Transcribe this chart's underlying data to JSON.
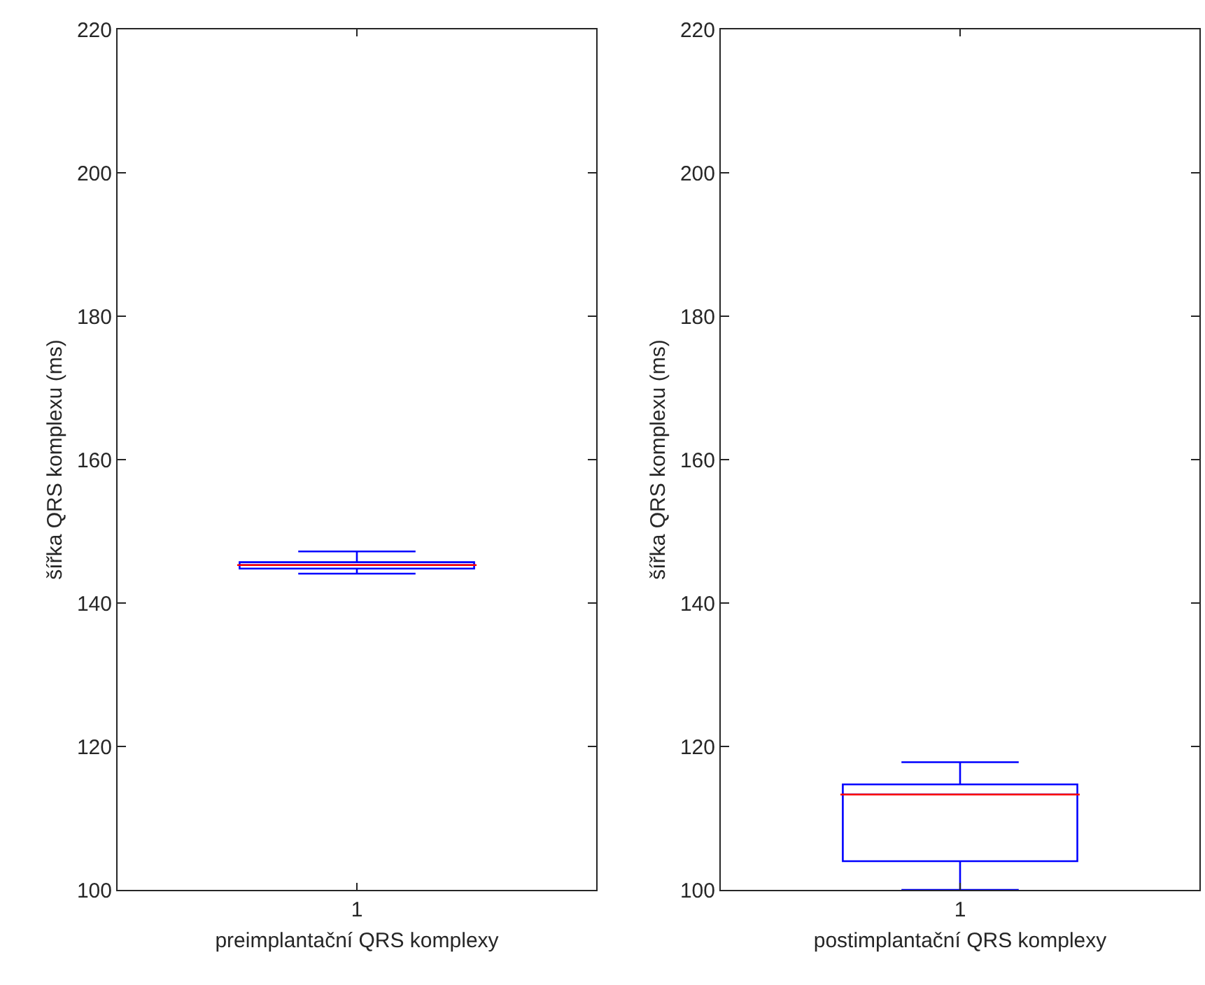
{
  "chart_data": [
    {
      "type": "box",
      "categories": [
        "1"
      ],
      "xlabel": "preimplantační QRS komplexy",
      "ylabel": "šířka QRS komplexu (ms)",
      "ylim": [
        100,
        220
      ],
      "yticks": [
        100,
        120,
        140,
        160,
        180,
        200,
        220
      ],
      "grid": false,
      "series": [
        {
          "color": "#0000ff",
          "boxes": [
            {
              "low": 144.1,
              "q1": 144.8,
              "median": 145.3,
              "q3": 145.7,
              "high": 147.2
            }
          ]
        }
      ]
    },
    {
      "type": "box",
      "categories": [
        "1"
      ],
      "xlabel": "postimplantační QRS komplexy",
      "ylabel": "šířka QRS komplexu (ms)",
      "ylim": [
        100,
        220
      ],
      "yticks": [
        100,
        120,
        140,
        160,
        180,
        200,
        220
      ],
      "grid": false,
      "series": [
        {
          "color": "#0000ff",
          "boxes": [
            {
              "low": 100,
              "q1": 104.0,
              "median": 113.3,
              "q3": 114.7,
              "high": 117.8
            }
          ]
        }
      ]
    }
  ]
}
